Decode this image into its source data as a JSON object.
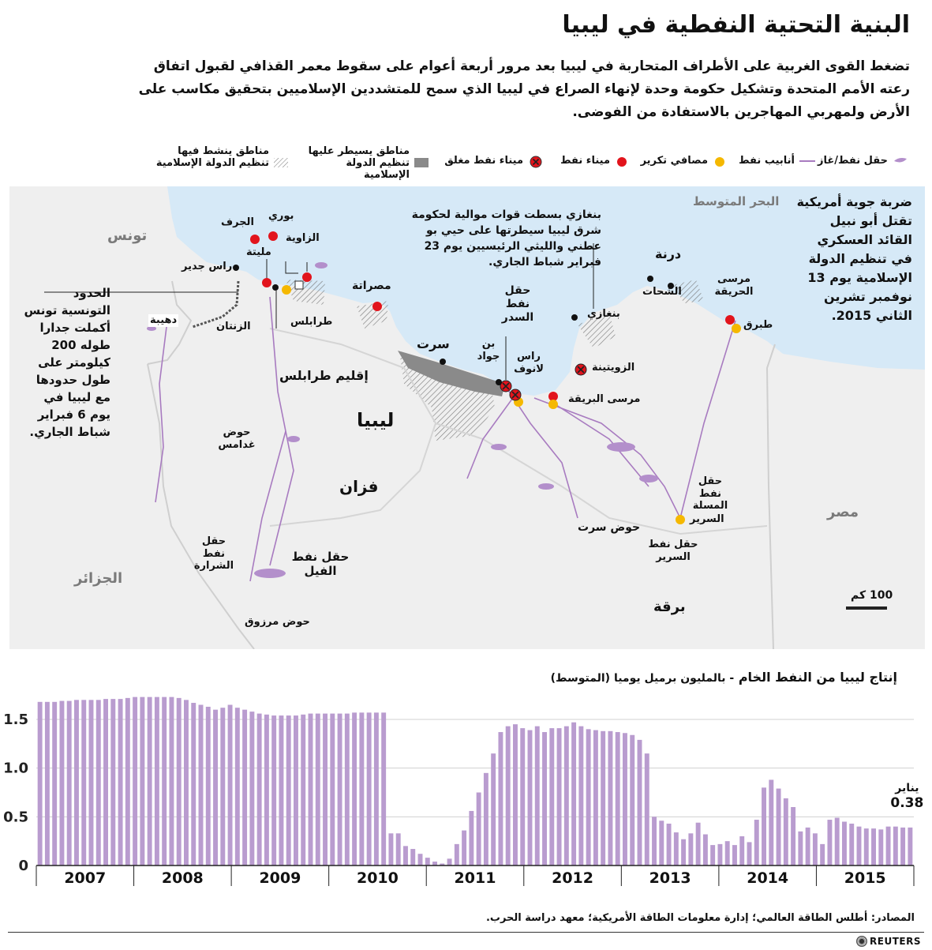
{
  "title": "البنية التحتية النفطية في ليبيا",
  "lede": "تضغط القوى الغربية على الأطراف المتحاربة في ليبيا بعد مرور أربعة أعوام على سقوط معمر القذافي لقبول اتفاق رعته الأمم المتحدة وتشكيل حكومة وحدة لإنهاء الصراع في ليبيا الذي سمح للمتشددين الإسلاميين بتحقيق مكاسب على الأرض ولمهربي المهاجرين بالاستفادة من الفوضى.",
  "legend": {
    "field": "حقل نفط/غاز",
    "pipeline": "أنابيب نفط",
    "refinery": "مصافي تكرير",
    "port": "ميناء نفط",
    "closed_port": "ميناء نفط مغلق",
    "is_control": "مناطق يسيطر عليها تنظيم الدولة الإسلامية",
    "is_active": "مناطق ينشط فيها تنظيم الدولة الإسلامية"
  },
  "colors": {
    "sea": "#d6e9f7",
    "land": "#efefef",
    "pipeline": "#a87bc0",
    "port": "#e2141c",
    "refinery": "#f5b800",
    "is_control": "#8a8a8a",
    "bars": "#b99ccf",
    "brand_icon": "#777777"
  },
  "map": {
    "sea": "البحر المتوسط",
    "tunisia": "تونس",
    "algeria": "الجزائر",
    "egypt": "مصر",
    "libya": "ليبيا",
    "fezzan": "فزان",
    "tripoli_region": "إقليم طرابلس",
    "barqa": "برقة",
    "bouri": "بوري",
    "jurf": "الجرف",
    "zawiya": "الزاوية",
    "mellitah": "مليتة",
    "ras_jadir": "راس جدير",
    "zintan": "الزنتان",
    "tripoli": "طرابلس",
    "dehiba": "دهيبة",
    "misrata": "مصراتة",
    "sirte": "سرت",
    "bin_jawad": "بن جواد",
    "sidra": "حقل نفط السدر",
    "ras_lanuf": "راس لانوف",
    "zueitina": "الزويتينة",
    "brega": "مرسى البريقة",
    "benghazi": "بنغازي",
    "benghazi_note": "بنغازي بسطت قوات موالية لحكومة شرق ليبيا سيطرتها على حيي بو عطني والليثي الرئيسيين يوم 23 فبراير شباط الجاري.",
    "shahat": "الشحات",
    "derna": "درنة",
    "hariga": "مرسى الحريقة",
    "tobruk": "طبرق",
    "derna_note_title": "درنة",
    "derna_note": "ضربة جوية أمريكية تقتل أبو نبيل القائد العسكري في تنظيم الدولة الإسلامية يوم 13 نوفمبر تشرين الثاني 2015.",
    "ghadames": "حوض غدامس",
    "messla": "حقل نفط المسلة",
    "sarir_ref": "السرير",
    "sirte_basin": "حوض سرت",
    "sarir_field": "حقل نفط السرير",
    "sharara": "حقل نفط الشرارة",
    "elephant": "حقل نفط الفيل",
    "murzuq": "حوض مرزوق",
    "tunisia_note": "الحدود التونسية تونس أكملت جدارا طوله 200 كيلومتر على طول حدودها مع ليبيا في يوم 6 فبراير شباط الجاري.",
    "scale": "100 كم"
  },
  "production_title": "إنتاج ليبيا من النفط الخام",
  "production_subtitle": "- بالمليون برميل يوميا (المتوسط)",
  "chart_data": {
    "type": "bar",
    "title": "إنتاج ليبيا من النفط الخام",
    "subtitle": "بالمليون برميل يوميا (المتوسط)",
    "x_labels": [
      "2007",
      "2008",
      "2009",
      "2010",
      "2011",
      "2012",
      "2013",
      "2014",
      "2015"
    ],
    "y_ticks": [
      "0",
      "0.5",
      "1.0",
      "1.5"
    ],
    "ylim": [
      0,
      1.8
    ],
    "annotation": {
      "label": "يناير",
      "value": "0.38"
    },
    "values": [
      1.68,
      1.68,
      1.68,
      1.69,
      1.69,
      1.7,
      1.7,
      1.7,
      1.7,
      1.71,
      1.71,
      1.71,
      1.72,
      1.73,
      1.73,
      1.73,
      1.73,
      1.73,
      1.73,
      1.72,
      1.7,
      1.67,
      1.65,
      1.63,
      1.6,
      1.62,
      1.65,
      1.62,
      1.6,
      1.58,
      1.56,
      1.55,
      1.54,
      1.54,
      1.54,
      1.54,
      1.55,
      1.56,
      1.56,
      1.56,
      1.56,
      1.56,
      1.56,
      1.57,
      1.57,
      1.57,
      1.57,
      1.57,
      0.33,
      0.33,
      0.2,
      0.17,
      0.12,
      0.08,
      0.04,
      0.02,
      0.07,
      0.22,
      0.36,
      0.56,
      0.75,
      0.95,
      1.15,
      1.37,
      1.43,
      1.45,
      1.41,
      1.39,
      1.43,
      1.37,
      1.41,
      1.41,
      1.43,
      1.47,
      1.43,
      1.4,
      1.39,
      1.38,
      1.38,
      1.37,
      1.36,
      1.34,
      1.29,
      1.15,
      0.5,
      0.46,
      0.43,
      0.34,
      0.27,
      0.33,
      0.44,
      0.32,
      0.21,
      0.22,
      0.25,
      0.21,
      0.3,
      0.24,
      0.47,
      0.8,
      0.88,
      0.79,
      0.69,
      0.6,
      0.35,
      0.39,
      0.33,
      0.22,
      0.47,
      0.49,
      0.45,
      0.43,
      0.4,
      0.38,
      0.38,
      0.37,
      0.4,
      0.4,
      0.39,
      0.39
    ]
  },
  "sources": "المصادر: أطلس الطاقة العالمي؛ إدارة معلومات الطاقة الأمريكية؛ معهد دراسة الحرب.",
  "brand": "REUTERS"
}
